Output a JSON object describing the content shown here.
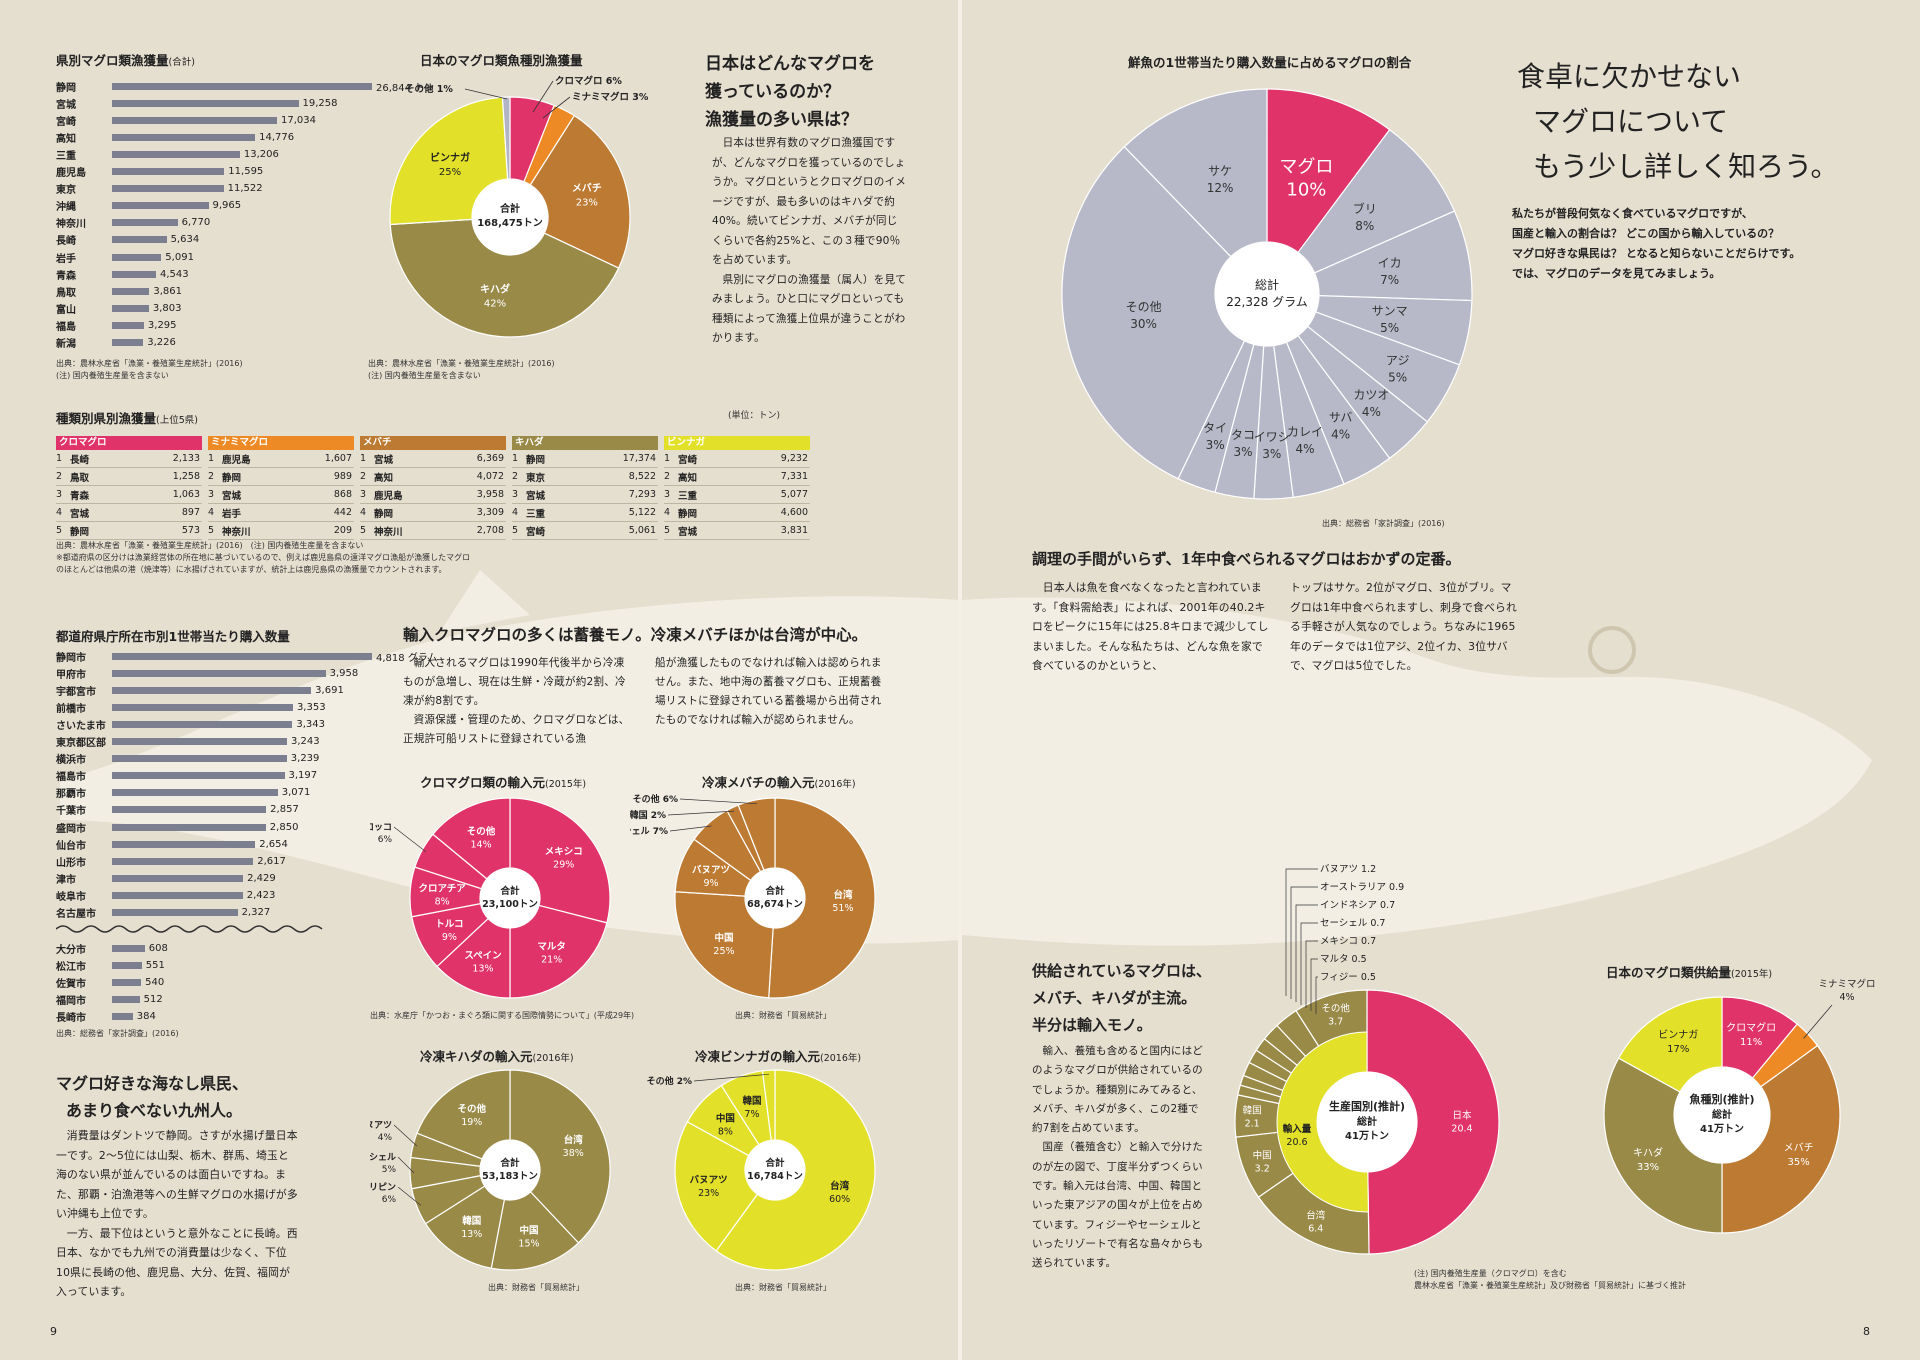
{
  "left": {
    "pref_catch": {
      "title": "県別マグロ類漁獲量",
      "title_note": "(合計)",
      "items": [
        {
          "name": "静岡",
          "value": 26844,
          "label": "26,844",
          "unit": "トン"
        },
        {
          "name": "宮城",
          "value": 19258,
          "label": "19,258"
        },
        {
          "name": "宮崎",
          "value": 17034,
          "label": "17,034"
        },
        {
          "name": "高知",
          "value": 14776,
          "label": "14,776"
        },
        {
          "name": "三重",
          "value": 13206,
          "label": "13,206"
        },
        {
          "name": "鹿児島",
          "value": 11595,
          "label": "11,595"
        },
        {
          "name": "東京",
          "value": 11522,
          "label": "11,522"
        },
        {
          "name": "沖縄",
          "value": 9965,
          "label": "9,965"
        },
        {
          "name": "神奈川",
          "value": 6770,
          "label": "6,770"
        },
        {
          "name": "長崎",
          "value": 5634,
          "label": "5,634"
        },
        {
          "name": "岩手",
          "value": 5091,
          "label": "5,091"
        },
        {
          "name": "青森",
          "value": 4543,
          "label": "4,543"
        },
        {
          "name": "鳥取",
          "value": 3861,
          "label": "3,861"
        },
        {
          "name": "富山",
          "value": 3803,
          "label": "3,803"
        },
        {
          "name": "福島",
          "value": 3295,
          "label": "3,295"
        },
        {
          "name": "新潟",
          "value": 3226,
          "label": "3,226"
        }
      ],
      "source": "出典：農林水産省「漁業・養殖業生産統計」(2016)",
      "note": "(注) 国内養殖生産量を含まない"
    },
    "species_pie": {
      "title": "日本のマグロ類魚種別漁獲量",
      "center": [
        "合計",
        "168,475トン"
      ],
      "slices": [
        {
          "name": "クロマグロ",
          "pct": 6,
          "color": "#e0336a",
          "label": "クロマグロ 6%"
        },
        {
          "name": "ミナミマグロ",
          "pct": 3,
          "color": "#ee8a25",
          "label": "ミナミマグロ 3%"
        },
        {
          "name": "メバチ",
          "pct": 23,
          "color": "#bd7a32",
          "label": "メバチ 23%"
        },
        {
          "name": "キハダ",
          "pct": 42,
          "color": "#9a8a48",
          "label": "キハダ 42%"
        },
        {
          "name": "ビンナガ",
          "pct": 25,
          "color": "#e3e02a",
          "label": "ビンナガ 25%"
        },
        {
          "name": "その他",
          "pct": 1,
          "color": "#b3b4c6",
          "label": "その他 1%"
        }
      ],
      "source": "出典：農林水産省「漁業・養殖業生産統計」(2016)",
      "note": "(注) 国内養殖生産量を含まない"
    },
    "q_heading": [
      "日本はどんなマグロを",
      "獲っているのか？",
      "漁獲量の多い県は？"
    ],
    "q_body": [
      "日本は世界有数のマグロ漁獲国ですが、どんなマグロを獲っているのでしょうか。マグロというとクロマグロのイメージですが、最も多いのはキハダで約40%。続いてビンナガ、メバチが同じくらいで各約25%と、この３種で90％を占めています。",
      "県別にマグロの漁獲量（属人）を見てみましょう。ひと口にマグロといっても種類によって漁獲上位県が違うことがわかります。"
    ],
    "top5": {
      "title": "種類別県別漁獲量",
      "title_note": "(上位5県)",
      "unit": "(単位：トン)",
      "tables": [
        {
          "name": "クロマグロ",
          "color": "#e0336a",
          "rows": [
            [
              "1",
              "長崎",
              "2,133"
            ],
            [
              "2",
              "鳥取",
              "1,258"
            ],
            [
              "3",
              "青森",
              "1,063"
            ],
            [
              "4",
              "宮城",
              "897"
            ],
            [
              "5",
              "静岡",
              "573"
            ]
          ]
        },
        {
          "name": "ミナミマグロ",
          "color": "#ee8a25",
          "rows": [
            [
              "1",
              "鹿児島",
              "1,607"
            ],
            [
              "2",
              "静岡",
              "989"
            ],
            [
              "3",
              "宮城",
              "868"
            ],
            [
              "4",
              "岩手",
              "442"
            ],
            [
              "5",
              "神奈川",
              "209"
            ]
          ]
        },
        {
          "name": "メバチ",
          "color": "#bd7a32",
          "rows": [
            [
              "1",
              "宮城",
              "6,369"
            ],
            [
              "2",
              "高知",
              "4,072"
            ],
            [
              "3",
              "鹿児島",
              "3,958"
            ],
            [
              "4",
              "静岡",
              "3,309"
            ],
            [
              "5",
              "神奈川",
              "2,708"
            ]
          ]
        },
        {
          "name": "キハダ",
          "color": "#9a8a48",
          "rows": [
            [
              "1",
              "静岡",
              "17,374"
            ],
            [
              "2",
              "東京",
              "8,522"
            ],
            [
              "3",
              "宮城",
              "7,293"
            ],
            [
              "4",
              "三重",
              "5,122"
            ],
            [
              "5",
              "宮崎",
              "5,061"
            ]
          ]
        },
        {
          "name": "ビンナガ",
          "color": "#e3e02a",
          "rows": [
            [
              "1",
              "宮崎",
              "9,232"
            ],
            [
              "2",
              "高知",
              "7,331"
            ],
            [
              "3",
              "三重",
              "5,077"
            ],
            [
              "4",
              "静岡",
              "4,600"
            ],
            [
              "5",
              "宮城",
              "3,831"
            ]
          ]
        }
      ],
      "notes": [
        "出典：農林水産省「漁業・養殖業生産統計」(2016)　(注) 国内養殖生産量を含まない",
        "※都道府県の区分けは漁業経営体の所在地に基づいているので、例えば鹿児島県の遠洋マグロ漁船が漁獲したマグロ",
        "のほとんどは他県の港（焼津等）に水揚げされていますが、統計上は鹿児島県の漁獲量でカウントされます。"
      ]
    },
    "city_purchase": {
      "title": "都道府県庁所在市別1世帯当たり購入数量",
      "items": [
        {
          "name": "静岡市",
          "value": 4818,
          "label": "4,818",
          "unit": "グラム"
        },
        {
          "name": "甲府市",
          "value": 3958,
          "label": "3,958"
        },
        {
          "name": "宇都宮市",
          "value": 3691,
          "label": "3,691"
        },
        {
          "name": "前橋市",
          "value": 3353,
          "label": "3,353"
        },
        {
          "name": "さいたま市",
          "value": 3343,
          "label": "3,343"
        },
        {
          "name": "東京都区部",
          "value": 3243,
          "label": "3,243"
        },
        {
          "name": "横浜市",
          "value": 3239,
          "label": "3,239"
        },
        {
          "name": "福島市",
          "value": 3197,
          "label": "3,197"
        },
        {
          "name": "那覇市",
          "value": 3071,
          "label": "3,071"
        },
        {
          "name": "千葉市",
          "value": 2857,
          "label": "2,857"
        },
        {
          "name": "盛岡市",
          "value": 2850,
          "label": "2,850"
        },
        {
          "name": "仙台市",
          "value": 2654,
          "label": "2,654"
        },
        {
          "name": "山形市",
          "value": 2617,
          "label": "2,617"
        },
        {
          "name": "津市",
          "value": 2429,
          "label": "2,429"
        },
        {
          "name": "岐阜市",
          "value": 2423,
          "label": "2,423"
        },
        {
          "name": "名古屋市",
          "value": 2327,
          "label": "2,327"
        }
      ],
      "bottom_items": [
        {
          "name": "大分市",
          "value": 608,
          "label": "608"
        },
        {
          "name": "松江市",
          "value": 551,
          "label": "551"
        },
        {
          "name": "佐賀市",
          "value": 540,
          "label": "540"
        },
        {
          "name": "福岡市",
          "value": 512,
          "label": "512"
        },
        {
          "name": "長崎市",
          "value": 384,
          "label": "384"
        }
      ],
      "source": "出典：総務省「家計調査」(2016)"
    },
    "import_heading": "輸入クロマグロの多くは蓄養モノ。冷凍メバチほかは台湾が中心。",
    "import_body_1": [
      "輸入されるマグロは1990年代後半から冷凍ものが急増し、現在は生鮮・冷蔵が約2割、冷凍が約8割です。",
      "資源保護・管理のため、クロマグロなどは、正規許可船リストに登録されている漁"
    ],
    "import_body_2": "船が漁獲したものでなければ輸入は認められません。また、地中海の蓄養マグロも、正規蓄養場リストに登録されている蓄養場から出荷されたものでなければ輸入が認められません。",
    "pies": [
      {
        "title": "クロマグロ類の輸入元",
        "year": "(2015年)",
        "center": [
          "合計",
          "23,100トン"
        ],
        "color": "#e0336a",
        "slices": [
          {
            "name": "メキシコ",
            "pct": 29
          },
          {
            "name": "マルタ",
            "pct": 21
          },
          {
            "name": "スペイン",
            "pct": 13
          },
          {
            "name": "トルコ",
            "pct": 9
          },
          {
            "name": "クロアチア",
            "pct": 8
          },
          {
            "name": "モロッコ",
            "pct": 6
          },
          {
            "name": "その他",
            "pct": 14
          }
        ],
        "labels": [
          [
            "メキシコ",
            "29%"
          ],
          [
            "マルタ",
            "21%"
          ],
          [
            "スペイン",
            "13%"
          ],
          [
            "トルコ",
            "9%"
          ],
          [
            "クロアチア",
            "8%"
          ],
          [
            "モロッコ",
            "6%"
          ],
          [
            "その他",
            "14%"
          ]
        ],
        "source": "出典：水産庁「かつお・まぐろ類に関する国際情勢について」(平成29年)"
      },
      {
        "title": "冷凍メバチの輸入元",
        "year": "(2016年)",
        "center": [
          "合計",
          "68,674トン"
        ],
        "color": "#bd7a32",
        "slices": [
          {
            "name": "台湾",
            "pct": 51
          },
          {
            "name": "中国",
            "pct": 25
          },
          {
            "name": "バヌアツ",
            "pct": 9
          },
          {
            "name": "セーシェル",
            "pct": 7
          },
          {
            "name": "韓国",
            "pct": 2
          },
          {
            "name": "その他",
            "pct": 6
          }
        ],
        "labels": [
          [
            "台湾",
            "51%"
          ],
          [
            "中国",
            "25%"
          ],
          [
            "バヌアツ",
            "9%"
          ],
          [
            "セーシェル",
            "7%"
          ],
          [
            "韓国",
            "2%"
          ],
          [
            "その他",
            "6%"
          ]
        ],
        "source": "出典：財務省「貿易統計」"
      },
      {
        "title": "冷凍キハダの輸入元",
        "year": "(2016年)",
        "center": [
          "合計",
          "53,183トン"
        ],
        "color": "#9a8a48",
        "slices": [
          {
            "name": "台湾",
            "pct": 38
          },
          {
            "name": "中国",
            "pct": 15
          },
          {
            "name": "韓国",
            "pct": 13
          },
          {
            "name": "フィリピン",
            "pct": 6
          },
          {
            "name": "セーシェル",
            "pct": 5
          },
          {
            "name": "バヌアツ",
            "pct": 4
          },
          {
            "name": "その他",
            "pct": 19
          }
        ],
        "labels": [
          [
            "台湾",
            "38%"
          ],
          [
            "中国",
            "15%"
          ],
          [
            "韓国",
            "13%"
          ],
          [
            "フィリピン",
            "6%"
          ],
          [
            "セーシェル",
            "5%"
          ],
          [
            "バヌアツ",
            "4%"
          ],
          [
            "その他",
            "19%"
          ]
        ],
        "source": "出典：財務省「貿易統計」"
      },
      {
        "title": "冷凍ビンナガの輸入元",
        "year": "(2016年)",
        "center": [
          "合計",
          "16,784トン"
        ],
        "color": "#e3e02a",
        "slices": [
          {
            "name": "台湾",
            "pct": 60
          },
          {
            "name": "バヌアツ",
            "pct": 23
          },
          {
            "name": "中国",
            "pct": 8
          },
          {
            "name": "韓国",
            "pct": 7
          },
          {
            "name": "その他",
            "pct": 2
          }
        ],
        "labels": [
          [
            "台湾",
            "60%"
          ],
          [
            "バヌアツ",
            "23%"
          ],
          [
            "中国",
            "8%"
          ],
          [
            "韓国",
            "7%"
          ],
          [
            "その他",
            "2%"
          ]
        ],
        "source": "出典：財務省「貿易統計」"
      }
    ],
    "prefs_heading": [
      "マグロ好きな海なし県民、",
      "あまり食べない九州人。"
    ],
    "prefs_body": [
      "消費量はダントツで静岡。さすが水揚げ量日本一です。2〜5位には山梨、栃木、群馬、埼玉と海のない県が並んでいるのは面白いですね。また、那覇・泊漁港等への生鮮マグロの水揚げが多い沖縄も上位です。",
      "一方、最下位はというと意外なことに長崎。西日本、なかでも九州での消費量は少なく、下位10県に長崎の他、鹿児島、大分、佐賀、福岡が入っています。"
    ],
    "page_no": "9"
  },
  "right": {
    "fresh_pie": {
      "title": "鮮魚の1世帯当たり購入数量に占めるマグロの割合",
      "center": [
        "総計",
        "22,328 グラム"
      ],
      "slices": [
        {
          "name": "マグロ",
          "pct": 10
        },
        {
          "name": "ブリ",
          "pct": 8
        },
        {
          "name": "イカ",
          "pct": 7
        },
        {
          "name": "サンマ",
          "pct": 5
        },
        {
          "name": "アジ",
          "pct": 5
        },
        {
          "name": "カツオ",
          "pct": 4
        },
        {
          "name": "サバ",
          "pct": 4
        },
        {
          "name": "カレイ",
          "pct": 4
        },
        {
          "name": "イワシ",
          "pct": 3
        },
        {
          "name": "タコ",
          "pct": 3
        },
        {
          "name": "タイ",
          "pct": 3
        },
        {
          "name": "その他",
          "pct": 30
        },
        {
          "name": "サケ",
          "pct": 12
        }
      ],
      "labels": [
        [
          "マグロ",
          "10%"
        ],
        [
          "ブリ",
          "8%"
        ],
        [
          "イカ",
          "7%"
        ],
        [
          "サンマ",
          "5%"
        ],
        [
          "アジ",
          "5%"
        ],
        [
          "カツオ",
          "4%"
        ],
        [
          "サバ",
          "4%"
        ],
        [
          "カレイ",
          "4%"
        ],
        [
          "イワシ",
          "3%"
        ],
        [
          "タコ",
          "3%"
        ],
        [
          "タイ",
          "3%"
        ],
        [
          "その他",
          "30%"
        ],
        [
          "サケ",
          "12%"
        ]
      ],
      "source": "出典：総務省「家計調査」(2016)"
    },
    "headline": [
      "食卓に欠かせない",
      "マグロについて",
      "もう少し詳しく知ろう。"
    ],
    "lead": [
      "私たちが普段何気なく食べているマグロですが、",
      "国産と輸入の割合は？ どこの国から輸入しているの？",
      "マグロ好きな県民は？ となると知らないことだらけです。",
      "では、マグロのデータを見てみましょう。"
    ],
    "cook_heading": "調理の手間がいらず、1年中食べられるマグロはおかずの定番。",
    "cook_body_1": "日本人は魚を食べなくなったと言われています。「食料需給表」によれば、2001年の40.2キロをピークに15年には25.8キロまで減少してしまいました。そんな私たちは、どんな魚を家で食べているのかというと、",
    "cook_body_2": "トップはサケ。2位がマグロ、3位がブリ。マグロは1年中食べられますし、刺身で食べられる手軽さが人気なのでしょう。ちなみに1965年のデータでは1位アジ、2位イカ、3位サバで、マグロは5位でした。",
    "supply_heading": [
      "供給されているマグロは、",
      "メバチ、キハダが主流。",
      "半分は輸入モノ。"
    ],
    "supply_body": [
      "輸入、養殖も含めると国内にはどのようなマグロが供給されているのでしょうか。種類別にみてみると、メバチ、キハダが多く、この2種で約7割を占めています。",
      "国産（養殖含む）と輸入で分けたのが左の図で、丁度半分ずつくらいです。輸入元は台湾、中国、韓国といった東アジアの国々が上位を占めています。フィジーやセーシェルといったリゾートで有名な島々からも送られています。"
    ],
    "supply_title": "日本のマグロ類供給量",
    "supply_year": "(2015年)",
    "country_pie": {
      "center": [
        "生産国別",
        "(推計)",
        "総計",
        "41万トン"
      ],
      "slices": [
        {
          "name": "日本",
          "value": 20.4
        },
        {
          "name": "台湾",
          "value": 6.4
        },
        {
          "name": "中国",
          "value": 3.2
        },
        {
          "name": "韓国",
          "value": 2.1
        },
        {
          "name": "フィジー",
          "value": 0.5
        },
        {
          "name": "マルタ",
          "value": 0.5
        },
        {
          "name": "メキシコ",
          "value": 0.7
        },
        {
          "name": "セーシェル",
          "value": 0.7
        },
        {
          "name": "インドネシア",
          "value": 0.7
        },
        {
          "name": "オーストラリア",
          "value": 0.9
        },
        {
          "name": "バヌアツ",
          "value": 1.2
        },
        {
          "name": "その他",
          "value": 3.7
        }
      ],
      "labels": [
        [
          "日本",
          "20.4"
        ],
        [
          "台湾",
          "6.4"
        ],
        [
          "中国",
          "3.2"
        ],
        [
          "韓国",
          "2.1"
        ],
        [
          "その他",
          "3.7"
        ],
        [
          "輸入量",
          "20.6"
        ]
      ],
      "callouts": [
        "バヌアツ 1.2",
        "オーストラリア 0.9",
        "インドネシア 0.7",
        "セーシェル 0.7",
        "メキシコ 0.7",
        "マルタ 0.5",
        "フィジー 0.5"
      ]
    },
    "species_supply_pie": {
      "center": [
        "魚種別",
        "(推計)",
        "総計",
        "41万トン"
      ],
      "slices": [
        {
          "name": "クロマグロ",
          "pct": 11
        },
        {
          "name": "ミナミマグロ",
          "pct": 4
        },
        {
          "name": "メバチ",
          "pct": 35
        },
        {
          "name": "キハダ",
          "pct": 33
        },
        {
          "name": "ビンナガ",
          "pct": 17
        }
      ],
      "labels": [
        [
          "クロマグロ",
          "11%"
        ],
        [
          "ミナミマグロ",
          "4%"
        ],
        [
          "メバチ",
          "35%"
        ],
        [
          "キハダ",
          "33%"
        ],
        [
          "ビンナガ",
          "17%"
        ]
      ]
    },
    "supply_notes": [
      "(注) 国内養殖生産量（クロマグロ）を含む",
      "農林水産省「漁業・養殖業生産統計」及び財務省「貿易統計」に基づく推計"
    ],
    "page_no": "8"
  }
}
